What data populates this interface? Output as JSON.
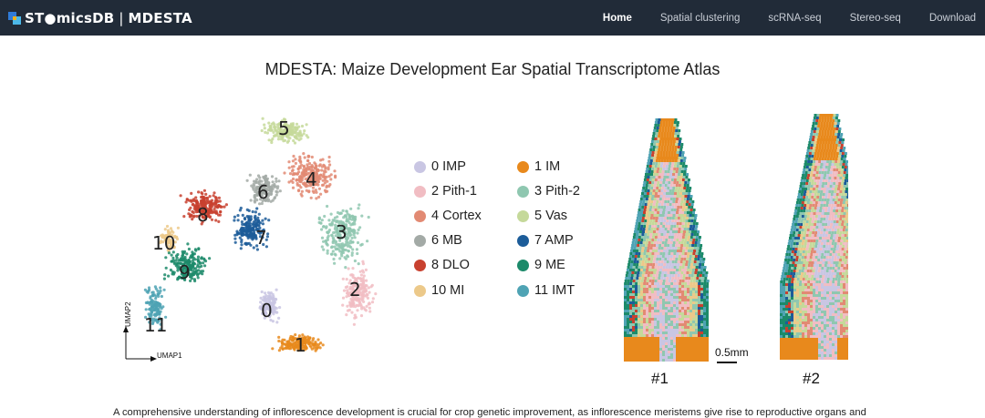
{
  "navbar": {
    "brand_stomics": "ST●micsDB",
    "brand_sep": "|",
    "brand_app": "MDESTA",
    "links": [
      {
        "label": "Home",
        "active": true
      },
      {
        "label": "Spatial clustering",
        "active": false
      },
      {
        "label": "scRNA-seq",
        "active": false
      },
      {
        "label": "Stereo-seq",
        "active": false
      },
      {
        "label": "Download",
        "active": false
      }
    ]
  },
  "page": {
    "title": "MDESTA: Maize Development Ear Spatial Transcriptome Atlas",
    "description": "A comprehensive understanding of inflorescence development is crucial for crop genetic improvement, as inflorescence meristems give rise to reproductive organs and"
  },
  "figure": {
    "umap_axis_x": "UMAP1",
    "umap_axis_y": "UMAP2",
    "cluster_numbers": [
      "0",
      "1",
      "2",
      "3",
      "4",
      "5",
      "6",
      "7",
      "8",
      "9",
      "10",
      "11"
    ],
    "legend": [
      {
        "id": "0",
        "label": "0 IMP",
        "color": "#c9c6e3"
      },
      {
        "id": "1",
        "label": "1 IM",
        "color": "#e8891c"
      },
      {
        "id": "2",
        "label": "2 Pith-1",
        "color": "#f1bdc3"
      },
      {
        "id": "3",
        "label": "3 Pith-2",
        "color": "#8fc7b0"
      },
      {
        "id": "4",
        "label": "4 Cortex",
        "color": "#e28a73"
      },
      {
        "id": "5",
        "label": "5  Vas",
        "color": "#c5d99a"
      },
      {
        "id": "6",
        "label": "6 MB",
        "color": "#a3aaa6"
      },
      {
        "id": "7",
        "label": "7  AMP",
        "color": "#1c5c99"
      },
      {
        "id": "8",
        "label": "8 DLO",
        "color": "#c8412f"
      },
      {
        "id": "9",
        "label": "9  ME",
        "color": "#1c8a6a"
      },
      {
        "id": "10",
        "label": "10 MI",
        "color": "#ecc98a"
      },
      {
        "id": "11",
        "label": "11 IMT",
        "color": "#4fa3b4"
      }
    ],
    "scale_label": "0.5mm",
    "samples": [
      "#1",
      "#2"
    ]
  }
}
